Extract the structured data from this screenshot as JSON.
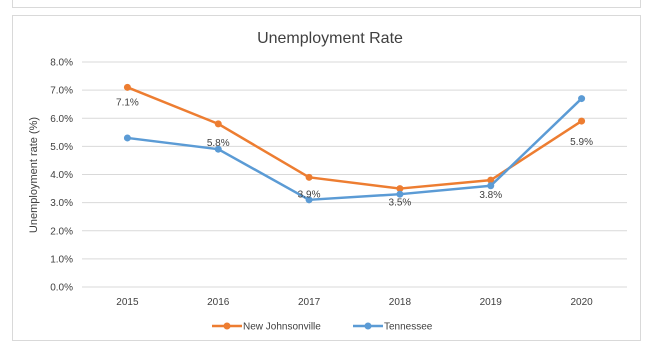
{
  "chart_data": {
    "type": "line",
    "title": "Unemployment Rate",
    "xlabel": "",
    "ylabel": "Unemployment rate (%)",
    "categories": [
      "2015",
      "2016",
      "2017",
      "2018",
      "2019",
      "2020"
    ],
    "ylim": [
      0,
      8
    ],
    "yticks": [
      "0.0%",
      "1.0%",
      "2.0%",
      "3.0%",
      "4.0%",
      "5.0%",
      "6.0%",
      "7.0%",
      "8.0%"
    ],
    "grid": true,
    "legend": "bottom",
    "series": [
      {
        "name": "New Johnsonville",
        "color": "#ED7D31",
        "values": [
          7.1,
          5.8,
          3.9,
          3.5,
          3.8,
          5.9
        ],
        "labels": [
          "7.1%",
          "5.8%",
          "3.9%",
          "3.5%",
          "3.8%",
          "5.9%"
        ]
      },
      {
        "name": "Tennessee",
        "color": "#5B9BD5",
        "values": [
          5.3,
          4.9,
          3.1,
          3.3,
          3.6,
          6.7
        ]
      }
    ]
  }
}
